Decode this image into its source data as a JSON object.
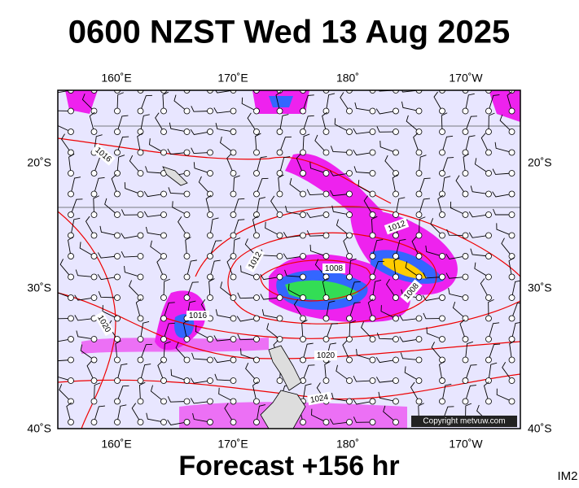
{
  "header": {
    "title": "0600 NZST Wed 13 Aug 2025"
  },
  "footer": {
    "forecast": "Forecast +156 hr",
    "code": "IM2"
  },
  "map": {
    "top_labels": [
      "160˚E",
      "170˚E",
      "180˚",
      "170˚W"
    ],
    "bottom_labels": [
      "160˚E",
      "170˚E",
      "180˚",
      "170˚W"
    ],
    "left_labels": [
      "20˚S",
      "30˚S",
      "40˚S"
    ],
    "right_labels": [
      "20˚S",
      "30˚S",
      "40˚S"
    ],
    "isobar_labels": [
      "1016",
      "1012",
      "1012",
      "1008",
      "1008",
      "1016",
      "1020",
      "1020",
      "1024"
    ],
    "copyright": "Copyright metvuw.com"
  }
}
